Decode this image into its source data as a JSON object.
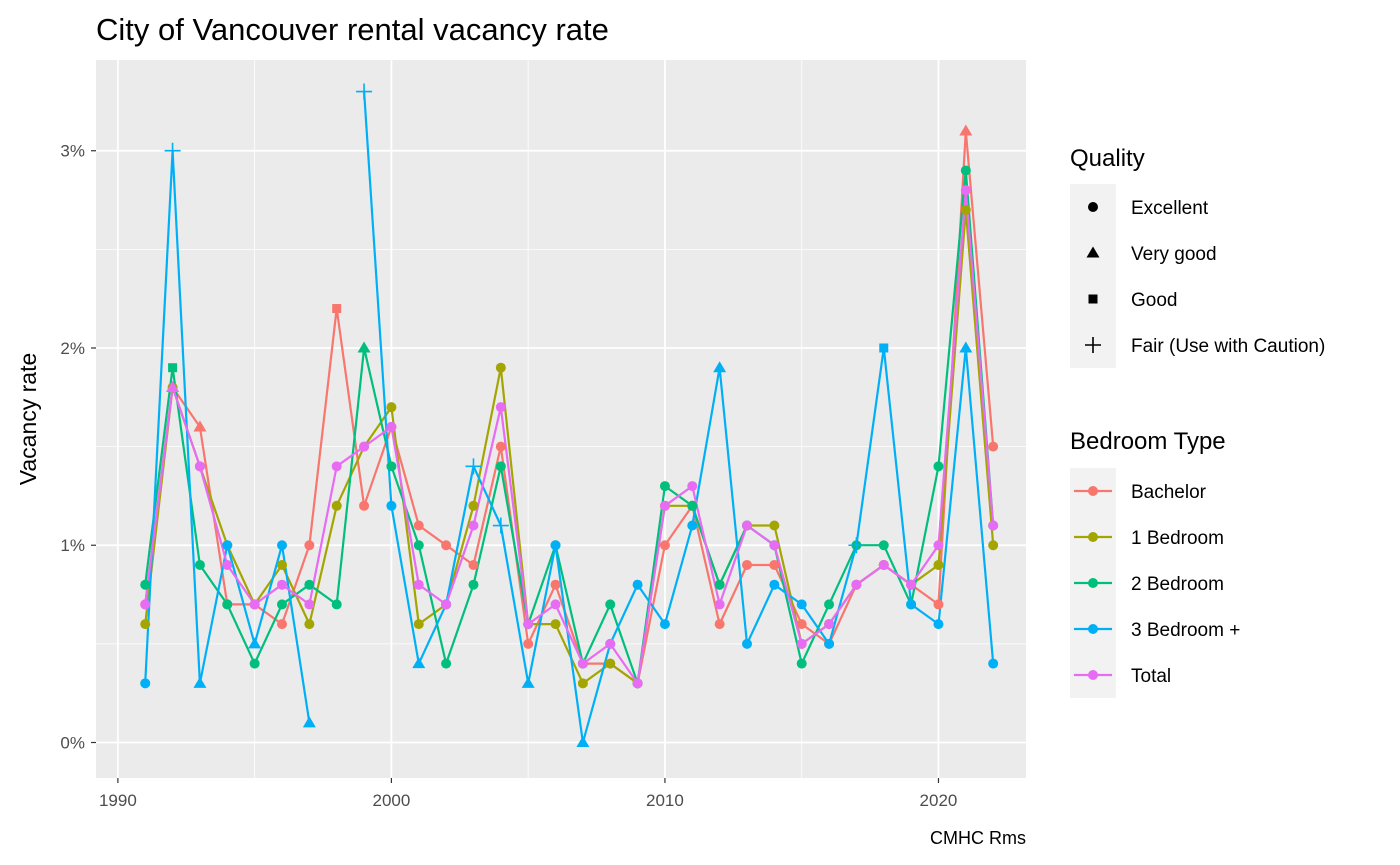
{
  "chart_data": {
    "type": "line",
    "title": "City of Vancouver rental vacancy rate",
    "xlabel": "",
    "ylabel": "Vacancy rate",
    "caption": "CMHC Rms",
    "xlim": [
      1989.2,
      2023.2
    ],
    "ylim": [
      -0.18,
      3.46
    ],
    "x_ticks": [
      1990,
      2000,
      2010,
      2020
    ],
    "y_ticks": [
      0,
      1,
      2,
      3
    ],
    "y_tick_labels": [
      "0%",
      "1%",
      "2%",
      "3%"
    ],
    "grid": true,
    "legend_position": "right",
    "quality_legend": {
      "title": "Quality",
      "entries": [
        {
          "label": "Excellent",
          "shape": "circle"
        },
        {
          "label": "Very good",
          "shape": "triangle"
        },
        {
          "label": "Good",
          "shape": "square"
        },
        {
          "label": "Fair (Use with Caution)",
          "shape": "plus"
        }
      ]
    },
    "series_legend": {
      "title": "Bedroom Type"
    },
    "x": [
      1991,
      1992,
      1993,
      1994,
      1995,
      1996,
      1997,
      1998,
      1999,
      2000,
      2001,
      2002,
      2003,
      2004,
      2005,
      2006,
      2007,
      2008,
      2009,
      2010,
      2011,
      2012,
      2013,
      2014,
      2015,
      2016,
      2017,
      2018,
      2019,
      2020,
      2021,
      2022
    ],
    "series": [
      {
        "name": "Bachelor",
        "color": "#F8766D",
        "values": [
          0.7,
          1.8,
          1.6,
          0.7,
          0.7,
          0.6,
          1.0,
          2.2,
          1.2,
          1.6,
          1.1,
          1.0,
          0.9,
          1.5,
          0.5,
          0.8,
          0.4,
          0.4,
          0.3,
          1.0,
          1.2,
          0.6,
          0.9,
          0.9,
          0.6,
          0.5,
          0.8,
          0.9,
          0.8,
          0.7,
          3.1,
          1.5
        ],
        "shapes": [
          "circle",
          "triangle",
          "triangle",
          "circle",
          "circle",
          "circle",
          "circle",
          "square",
          "circle",
          "circle",
          "circle",
          "circle",
          "circle",
          "circle",
          "circle",
          "circle",
          "circle",
          "circle",
          "circle",
          "circle",
          "circle",
          "circle",
          "circle",
          "circle",
          "circle",
          "circle",
          "circle",
          "circle",
          "circle",
          "circle",
          "triangle",
          "circle"
        ]
      },
      {
        "name": "1 Bedroom",
        "color": "#A3A500",
        "values": [
          0.6,
          1.8,
          1.4,
          1.0,
          0.7,
          0.9,
          0.6,
          1.2,
          1.5,
          1.7,
          0.6,
          0.7,
          1.2,
          1.9,
          0.6,
          0.6,
          0.3,
          0.4,
          0.3,
          1.2,
          1.2,
          0.8,
          1.1,
          1.1,
          0.5,
          0.6,
          0.8,
          0.9,
          0.8,
          0.9,
          2.7,
          1.0
        ],
        "shapes": [
          "circle",
          "circle",
          "circle",
          "circle",
          "circle",
          "circle",
          "circle",
          "circle",
          "circle",
          "circle",
          "circle",
          "circle",
          "circle",
          "circle",
          "circle",
          "circle",
          "circle",
          "circle",
          "circle",
          "circle",
          "circle",
          "circle",
          "circle",
          "circle",
          "circle",
          "circle",
          "circle",
          "circle",
          "circle",
          "circle",
          "circle",
          "circle"
        ]
      },
      {
        "name": "2 Bedroom",
        "color": "#00BF7D",
        "values": [
          0.8,
          1.9,
          0.9,
          0.7,
          0.4,
          0.7,
          0.8,
          0.7,
          2.0,
          1.4,
          1.0,
          0.4,
          0.8,
          1.4,
          0.6,
          1.0,
          0.4,
          0.7,
          0.3,
          1.3,
          1.2,
          0.8,
          1.1,
          1.0,
          0.4,
          0.7,
          1.0,
          1.0,
          0.7,
          1.4,
          2.9,
          1.1
        ],
        "shapes": [
          "circle",
          "square",
          "circle",
          "circle",
          "circle",
          "circle",
          "circle",
          "circle",
          "triangle",
          "circle",
          "circle",
          "circle",
          "circle",
          "circle",
          "circle",
          "circle",
          "circle",
          "circle",
          "circle",
          "circle",
          "circle",
          "circle",
          "circle",
          "circle",
          "circle",
          "circle",
          "circle",
          "circle",
          "circle",
          "circle",
          "circle",
          "circle"
        ]
      },
      {
        "name": "3 Bedroom +",
        "color": "#00B0F6",
        "values": [
          0.3,
          3.0,
          0.3,
          1.0,
          0.5,
          1.0,
          0.1,
          null,
          3.3,
          1.2,
          0.4,
          0.7,
          1.4,
          1.1,
          0.3,
          1.0,
          0.0,
          0.5,
          0.8,
          0.6,
          1.1,
          1.9,
          0.5,
          0.8,
          0.7,
          0.5,
          1.0,
          2.0,
          0.7,
          0.6,
          2.0,
          0.4
        ],
        "shapes": [
          "circle",
          "plus",
          "triangle",
          "circle",
          "triangle",
          "circle",
          "triangle",
          "none",
          "plus",
          "circle",
          "triangle",
          "circle",
          "plus",
          "plus",
          "triangle",
          "circle",
          "triangle",
          "circle",
          "circle",
          "circle",
          "circle",
          "triangle",
          "circle",
          "circle",
          "circle",
          "circle",
          "plus",
          "square",
          "circle",
          "circle",
          "triangle",
          "circle"
        ]
      },
      {
        "name": "Total",
        "color": "#E76BF3",
        "values": [
          0.7,
          1.8,
          1.4,
          0.9,
          0.7,
          0.8,
          0.7,
          1.4,
          1.5,
          1.6,
          0.8,
          0.7,
          1.1,
          1.7,
          0.6,
          0.7,
          0.4,
          0.5,
          0.3,
          1.2,
          1.3,
          0.7,
          1.1,
          1.0,
          0.5,
          0.6,
          0.8,
          0.9,
          0.8,
          1.0,
          2.8,
          1.1
        ],
        "shapes": [
          "circle",
          "triangle",
          "circle",
          "circle",
          "circle",
          "circle",
          "circle",
          "circle",
          "circle",
          "circle",
          "circle",
          "circle",
          "circle",
          "circle",
          "circle",
          "circle",
          "circle",
          "circle",
          "circle",
          "circle",
          "circle",
          "circle",
          "circle",
          "circle",
          "circle",
          "circle",
          "circle",
          "circle",
          "circle",
          "circle",
          "circle",
          "circle"
        ]
      }
    ]
  }
}
